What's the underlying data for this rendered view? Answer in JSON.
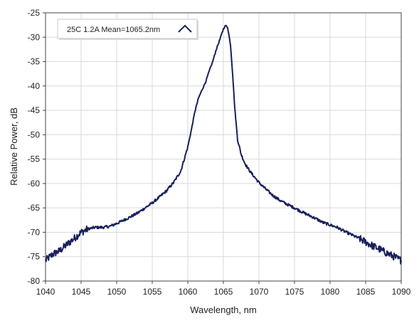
{
  "chart_data": {
    "type": "line",
    "title": "",
    "xlabel": "Wavelength, nm",
    "ylabel": "Relative Power, dB",
    "xlim": [
      1040,
      1090
    ],
    "ylim": [
      -80,
      -25
    ],
    "x_ticks": [
      1040,
      1045,
      1050,
      1055,
      1060,
      1065,
      1070,
      1075,
      1080,
      1085,
      1090
    ],
    "y_ticks": [
      -25,
      -30,
      -35,
      -40,
      -45,
      -50,
      -55,
      -60,
      -65,
      -70,
      -75,
      -80
    ],
    "grid": true,
    "legend_position": "top-left",
    "series": [
      {
        "name": "25C 1.2A Mean=1065.2nm",
        "color": "#1a1f5c",
        "x": [
          1040,
          1041,
          1042,
          1043,
          1044,
          1045,
          1046,
          1047,
          1048,
          1049,
          1050,
          1051,
          1052,
          1053,
          1054,
          1055,
          1056,
          1057,
          1058,
          1059,
          1060,
          1060.5,
          1061,
          1061.5,
          1062,
          1062.5,
          1063,
          1063.5,
          1064,
          1064.5,
          1065,
          1065.3,
          1065.6,
          1066,
          1066.3,
          1066.6,
          1067,
          1067.5,
          1068,
          1068.5,
          1069,
          1070,
          1071,
          1072,
          1073,
          1074,
          1075,
          1076,
          1077,
          1078,
          1079,
          1080,
          1081,
          1082,
          1083,
          1084,
          1085,
          1086,
          1087,
          1088,
          1089,
          1089.5,
          1090
        ],
        "y": [
          -75.8,
          -74.5,
          -73.8,
          -72.5,
          -71.3,
          -70.0,
          -69.3,
          -69.0,
          -69.0,
          -68.8,
          -68.2,
          -67.5,
          -66.8,
          -66.0,
          -65.0,
          -64.0,
          -62.8,
          -61.5,
          -59.8,
          -57.5,
          -52.5,
          -49.0,
          -45.2,
          -42.5,
          -40.8,
          -39.2,
          -37.0,
          -35.0,
          -32.5,
          -30.5,
          -28.3,
          -27.6,
          -28.0,
          -31.5,
          -37.5,
          -44.5,
          -51.0,
          -54.0,
          -55.8,
          -57.0,
          -58.0,
          -59.8,
          -61.2,
          -62.5,
          -63.5,
          -64.3,
          -65.0,
          -65.8,
          -66.5,
          -67.2,
          -68.0,
          -68.5,
          -69.0,
          -69.8,
          -70.5,
          -71.2,
          -72.0,
          -72.8,
          -73.5,
          -74.3,
          -75.0,
          -75.4,
          -75.8
        ]
      }
    ]
  }
}
